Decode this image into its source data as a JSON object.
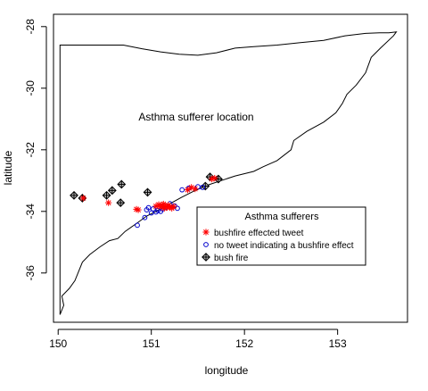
{
  "chart_data": {
    "type": "scatter",
    "title": "",
    "annotation": "Asthma sufferer location",
    "xlabel": "longitude",
    "ylabel": "latitude",
    "xlim": [
      149.95,
      153.75
    ],
    "ylim": [
      -37.6,
      -27.6
    ],
    "xticks": [
      150,
      151,
      152,
      153
    ],
    "yticks": [
      -36,
      -34,
      -32,
      -30,
      -28
    ],
    "grid": false,
    "legend": {
      "title": "Asthma sufferers",
      "placement": "right-center",
      "entries": [
        {
          "label": "bushfire effected tweet",
          "marker": "asterisk",
          "color": "#ff0000"
        },
        {
          "label": "no tweet indicating a bushfire effect",
          "marker": "circle",
          "color": "#0000cc"
        },
        {
          "label": "bush fire",
          "marker": "diamond-cross",
          "color": "#000000"
        }
      ]
    },
    "coastline": [
      [
        150.02,
        -37.35
      ],
      [
        150.06,
        -37.05
      ],
      [
        150.04,
        -36.75
      ],
      [
        150.12,
        -36.5
      ],
      [
        150.18,
        -36.25
      ],
      [
        150.22,
        -35.95
      ],
      [
        150.26,
        -35.65
      ],
      [
        150.34,
        -35.4
      ],
      [
        150.45,
        -35.15
      ],
      [
        150.55,
        -34.95
      ],
      [
        150.64,
        -34.88
      ],
      [
        150.72,
        -34.65
      ],
      [
        150.86,
        -34.35
      ],
      [
        150.95,
        -34.15
      ],
      [
        151.05,
        -34.0
      ],
      [
        151.2,
        -33.75
      ],
      [
        151.32,
        -33.55
      ],
      [
        151.45,
        -33.35
      ],
      [
        151.6,
        -33.15
      ],
      [
        151.75,
        -33.0
      ],
      [
        151.9,
        -32.85
      ],
      [
        152.1,
        -32.7
      ],
      [
        152.2,
        -32.55
      ],
      [
        152.35,
        -32.35
      ],
      [
        152.5,
        -32.0
      ],
      [
        152.53,
        -31.7
      ],
      [
        152.67,
        -31.4
      ],
      [
        152.85,
        -31.1
      ],
      [
        152.98,
        -30.8
      ],
      [
        153.05,
        -30.5
      ],
      [
        153.1,
        -30.2
      ],
      [
        153.2,
        -29.9
      ],
      [
        153.3,
        -29.5
      ],
      [
        153.36,
        -29.0
      ],
      [
        153.46,
        -28.7
      ],
      [
        153.6,
        -28.3
      ],
      [
        153.63,
        -28.17
      ],
      [
        153.55,
        -28.2
      ],
      [
        153.45,
        -28.2
      ],
      [
        153.3,
        -28.22
      ],
      [
        153.08,
        -28.3
      ],
      [
        152.85,
        -28.45
      ],
      [
        152.6,
        -28.52
      ],
      [
        152.35,
        -28.6
      ],
      [
        152.1,
        -28.65
      ],
      [
        151.9,
        -28.7
      ],
      [
        151.7,
        -28.85
      ],
      [
        151.5,
        -28.93
      ],
      [
        151.3,
        -28.9
      ],
      [
        151.1,
        -28.82
      ],
      [
        150.9,
        -28.72
      ],
      [
        150.7,
        -28.6
      ],
      [
        150.45,
        -28.6
      ],
      [
        150.2,
        -28.6
      ],
      [
        150.02,
        -28.6
      ]
    ],
    "series": [
      {
        "name": "bushfire effected tweet",
        "marker": "asterisk",
        "color": "#ff0000",
        "points": [
          [
            150.27,
            -33.57
          ],
          [
            150.54,
            -33.72
          ],
          [
            150.84,
            -33.93
          ],
          [
            150.86,
            -33.95
          ],
          [
            151.05,
            -33.83
          ],
          [
            151.08,
            -33.78
          ],
          [
            151.1,
            -33.85
          ],
          [
            151.12,
            -33.8
          ],
          [
            151.13,
            -33.76
          ],
          [
            151.15,
            -33.83
          ],
          [
            151.17,
            -33.87
          ],
          [
            151.18,
            -33.8
          ],
          [
            151.2,
            -33.86
          ],
          [
            151.22,
            -33.9
          ],
          [
            151.14,
            -33.9
          ],
          [
            151.24,
            -33.84
          ],
          [
            151.39,
            -33.3
          ],
          [
            151.43,
            -33.22
          ],
          [
            151.47,
            -33.27
          ],
          [
            151.65,
            -32.95
          ],
          [
            151.68,
            -32.92
          ]
        ]
      },
      {
        "name": "no tweet indicating a bushfire effect",
        "marker": "circle",
        "color": "#0000cc",
        "points": [
          [
            150.85,
            -34.45
          ],
          [
            150.93,
            -34.2
          ],
          [
            150.95,
            -33.95
          ],
          [
            150.97,
            -33.88
          ],
          [
            151.0,
            -34.05
          ],
          [
            151.02,
            -33.92
          ],
          [
            151.05,
            -34.02
          ],
          [
            151.07,
            -33.97
          ],
          [
            151.1,
            -34.0
          ],
          [
            151.12,
            -33.92
          ],
          [
            151.15,
            -33.88
          ],
          [
            151.2,
            -33.75
          ],
          [
            151.25,
            -33.82
          ],
          [
            151.28,
            -33.9
          ],
          [
            151.33,
            -33.3
          ],
          [
            151.4,
            -33.25
          ],
          [
            151.5,
            -33.2
          ],
          [
            151.55,
            -33.22
          ]
        ]
      },
      {
        "name": "bush fire",
        "marker": "diamond-cross",
        "color": "#000000",
        "points": [
          [
            150.17,
            -33.48
          ],
          [
            150.26,
            -33.57
          ],
          [
            150.52,
            -33.48
          ],
          [
            150.58,
            -33.32
          ],
          [
            150.67,
            -33.72
          ],
          [
            150.68,
            -33.12
          ],
          [
            150.96,
            -33.38
          ],
          [
            151.58,
            -33.18
          ],
          [
            151.63,
            -32.88
          ],
          [
            151.72,
            -32.95
          ]
        ]
      }
    ]
  }
}
